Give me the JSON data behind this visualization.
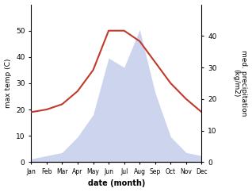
{
  "months": [
    "Jan",
    "Feb",
    "Mar",
    "Apr",
    "May",
    "Jun",
    "Jul",
    "Aug",
    "Sep",
    "Oct",
    "Nov",
    "Dec"
  ],
  "temperature": [
    19,
    20,
    22,
    27,
    35,
    50,
    50,
    46,
    38,
    30,
    24,
    19
  ],
  "precipitation": [
    1,
    2,
    3,
    8,
    15,
    33,
    30,
    42,
    22,
    8,
    3,
    2
  ],
  "temp_color": "#c0392b",
  "precip_color": "#b8c4e8",
  "background_color": "#ffffff",
  "xlabel": "date (month)",
  "ylabel_left": "max temp (C)",
  "ylabel_right": "med. precipitation\n(kg/m2)",
  "ylim_left": [
    0,
    60
  ],
  "ylim_right": [
    0,
    50
  ],
  "yticks_left": [
    0,
    10,
    20,
    30,
    40,
    50
  ],
  "yticks_right": [
    0,
    10,
    20,
    30,
    40
  ],
  "temp_linewidth": 1.5
}
